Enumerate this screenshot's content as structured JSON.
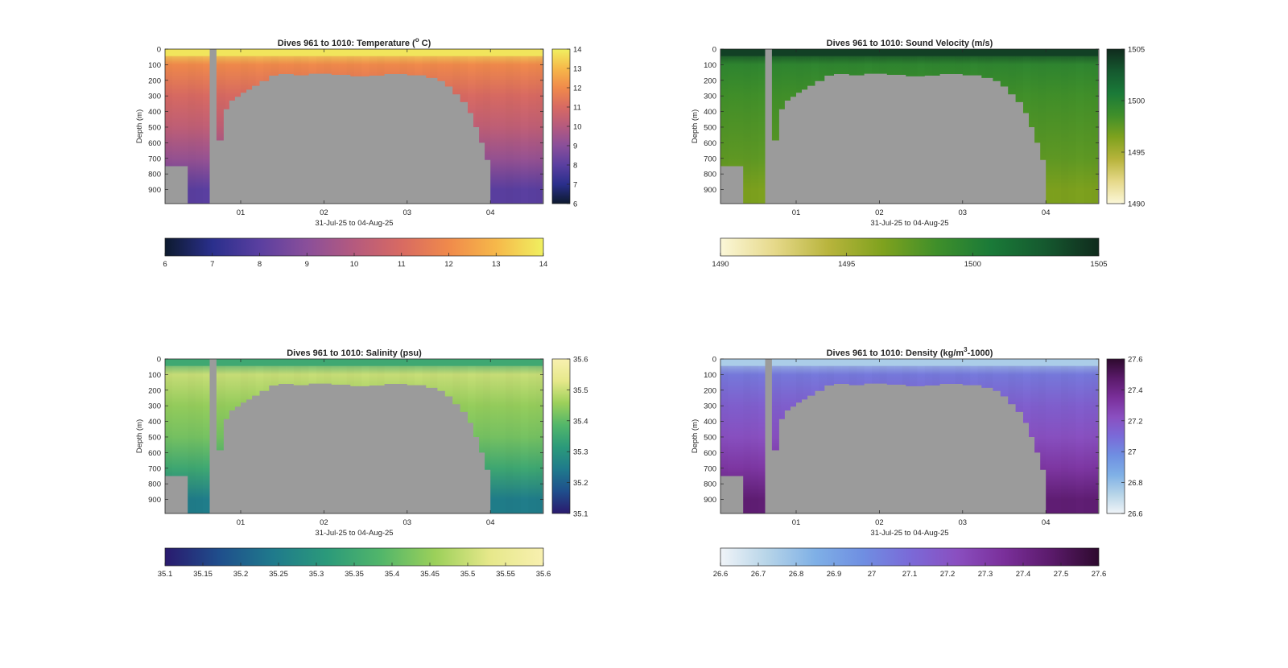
{
  "figure": {
    "date_range_label": "31-Jul-25 to 04-Aug-25",
    "depth_label": "Depth (m)",
    "depth_ticks": [
      "0",
      "100",
      "200",
      "300",
      "400",
      "500",
      "600",
      "700",
      "800",
      "900"
    ],
    "date_ticks": [
      "01",
      "02",
      "03",
      "04"
    ]
  },
  "chart_data": [
    {
      "type": "heatmap",
      "title": "Dives 961 to 1010: Temperature (",
      "title_sup": "o",
      "title_tail": " C)",
      "variable": "Temperature",
      "ylabel": "Depth (m)",
      "xlabel": "31-Jul-25 to 04-Aug-25",
      "ylim": [
        0,
        990
      ],
      "y_reversed": true,
      "x_range": [
        "31-Jul-25",
        "04-Aug-25"
      ],
      "colorbar_side": [
        6,
        14
      ],
      "colorbar_side_ticks": [
        "6",
        "7",
        "8",
        "9",
        "10",
        "11",
        "12",
        "13",
        "14"
      ],
      "colorbar_bottom_ticks": [
        "6",
        "7",
        "8",
        "9",
        "10",
        "11",
        "12",
        "13",
        "14"
      ],
      "colormap": [
        "#0d1a2e",
        "#2a2f8c",
        "#5a3fa0",
        "#8a4f9a",
        "#b55a7e",
        "#d86a62",
        "#f08a4b",
        "#f6b84a",
        "#f0f060"
      ],
      "profile_values": {
        "surface": 13.8,
        "d100": 12.0,
        "d300": 11.0,
        "d500": 10.3,
        "d700": 9.3,
        "d900": 8.0
      }
    },
    {
      "type": "heatmap",
      "title": "Dives 961 to 1010: Sound Velocity (m/s)",
      "variable": "Sound Velocity",
      "ylabel": "Depth (m)",
      "xlabel": "31-Jul-25 to 04-Aug-25",
      "ylim": [
        0,
        990
      ],
      "y_reversed": true,
      "x_range": [
        "31-Jul-25",
        "04-Aug-25"
      ],
      "colorbar_side": [
        1490,
        1505
      ],
      "colorbar_side_ticks": [
        "1490",
        "1495",
        "1500",
        "1505"
      ],
      "colorbar_bottom_ticks": [
        "1490",
        "1495",
        "1500",
        "1505"
      ],
      "colormap": [
        "#fbf7d8",
        "#e6d98a",
        "#b8b43c",
        "#7fa21e",
        "#3f8f2a",
        "#1a7a38",
        "#15592f",
        "#102b1d"
      ],
      "profile_values": {
        "surface": 1504,
        "d100": 1499.5,
        "d300": 1498.5,
        "d500": 1498.0,
        "d700": 1497.5,
        "d900": 1496.5
      }
    },
    {
      "type": "heatmap",
      "title": "Dives 961 to 1010: Salinity (psu)",
      "variable": "Salinity",
      "ylabel": "Depth (m)",
      "xlabel": "31-Jul-25 to 04-Aug-25",
      "ylim": [
        0,
        990
      ],
      "y_reversed": true,
      "x_range": [
        "31-Jul-25",
        "04-Aug-25"
      ],
      "colorbar_side": [
        35.1,
        35.6
      ],
      "colorbar_side_ticks": [
        "35.1",
        "35.2",
        "35.3",
        "35.4",
        "35.5",
        "35.6"
      ],
      "colorbar_bottom_ticks": [
        "35.1",
        "35.15",
        "35.2",
        "35.25",
        "35.3",
        "35.35",
        "35.4",
        "35.45",
        "35.5",
        "35.55",
        "35.6"
      ],
      "colormap": [
        "#2a1a6e",
        "#1f4e8c",
        "#1f7a8c",
        "#2b9a7a",
        "#52b66a",
        "#9cd05a",
        "#e6e88a",
        "#f8f0b0"
      ],
      "profile_values": {
        "surface": 35.35,
        "d100": 35.5,
        "d300": 35.45,
        "d500": 35.42,
        "d700": 35.35,
        "d900": 35.25
      }
    },
    {
      "type": "heatmap",
      "title": "Dives 961 to 1010: Density (kg/m",
      "title_sup": "3",
      "title_tail": "-1000)",
      "variable": "Density",
      "ylabel": "Depth (m)",
      "xlabel": "31-Jul-25 to 04-Aug-25",
      "ylim": [
        0,
        990
      ],
      "y_reversed": true,
      "x_range": [
        "31-Jul-25",
        "04-Aug-25"
      ],
      "colorbar_side": [
        26.6,
        27.6
      ],
      "colorbar_side_ticks": [
        "26.6",
        "26.8",
        "27",
        "27.2",
        "27.4",
        "27.6"
      ],
      "colorbar_bottom_ticks": [
        "26.6",
        "26.7",
        "26.8",
        "26.9",
        "27",
        "27.1",
        "27.2",
        "27.3",
        "27.4",
        "27.5",
        "27.6"
      ],
      "colormap": [
        "#f0f4f8",
        "#b6d4e8",
        "#7fb0e6",
        "#6f8fe2",
        "#7a6ad8",
        "#8a4fc0",
        "#7a2f9a",
        "#5a1a6a",
        "#2e0a2e"
      ],
      "profile_values": {
        "surface": 26.75,
        "d100": 27.05,
        "d300": 27.15,
        "d500": 27.22,
        "d700": 27.32,
        "d900": 27.45
      }
    }
  ],
  "colors": {
    "land_mask": "#9b9b9b",
    "axis": "#262626"
  }
}
